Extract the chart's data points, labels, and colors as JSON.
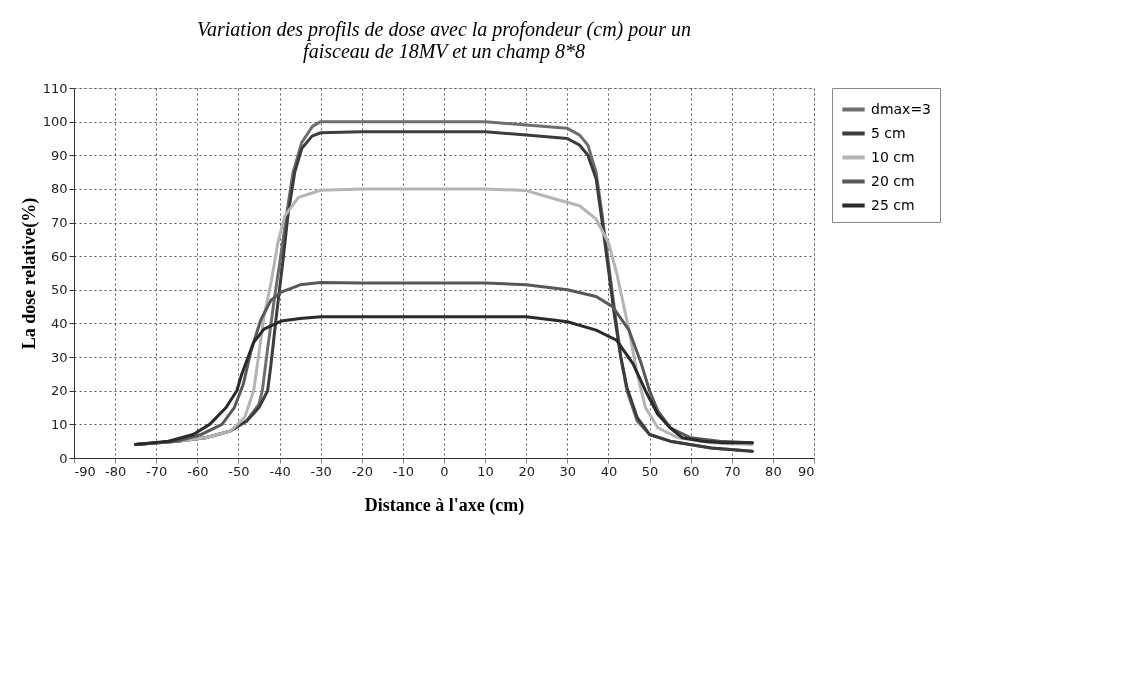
{
  "chart_data": {
    "type": "line",
    "title": [
      "Variation des profils de dose avec la profondeur (cm) pour un",
      "faisceau de 18MV et un champ 8*8"
    ],
    "xlabel": "Distance à l'axe (cm)",
    "ylabel": "La dose relative(%)",
    "xlim": [
      -90,
      90
    ],
    "xticks": [
      -90,
      -80,
      -70,
      -60,
      -50,
      -40,
      -30,
      -20,
      -10,
      0,
      10,
      20,
      30,
      40,
      50,
      60,
      70,
      80,
      90
    ],
    "ylim": [
      0,
      110
    ],
    "yticks": [
      0,
      10,
      20,
      30,
      40,
      50,
      60,
      70,
      80,
      90,
      100,
      110
    ],
    "grid": true,
    "legend": "right",
    "line_style": "solid",
    "marker": "none",
    "series": [
      {
        "name": "dmax=3",
        "color": "#6e6e6e",
        "x": [
          -75,
          -65,
          -58,
          -52,
          -48,
          -45,
          -44.2,
          -42.9,
          -41.3,
          -39.6,
          -37.9,
          -36.7,
          -34.6,
          -32,
          -30,
          -20,
          -10,
          0,
          10,
          20,
          30,
          33,
          35,
          37,
          38.5,
          40,
          41.5,
          43,
          44.5,
          47,
          50,
          55,
          65,
          75
        ],
        "values": [
          4,
          5,
          6,
          8,
          11,
          16,
          20,
          32.5,
          47,
          61,
          75.6,
          85,
          93.8,
          98.6,
          100,
          100,
          100,
          100,
          100,
          99,
          98,
          96,
          93,
          85,
          72,
          58,
          44,
          30,
          20,
          11,
          7,
          5,
          3,
          2
        ]
      },
      {
        "name": "5 cm",
        "color": "#3c3c3c",
        "x": [
          -75,
          -65,
          -58,
          -52,
          -48,
          -45,
          -42.9,
          -42.1,
          -40.8,
          -39.2,
          -37.9,
          -36.3,
          -34.6,
          -32.1,
          -30,
          -20,
          -10,
          0,
          10,
          20,
          30,
          33,
          35,
          37,
          38.5,
          40,
          41.5,
          43,
          44.5,
          47,
          50,
          55,
          65,
          75
        ],
        "values": [
          4,
          5,
          6,
          8,
          11,
          15,
          20,
          27.7,
          42,
          58.4,
          72.7,
          85,
          92,
          95.7,
          96.7,
          97,
          97,
          97,
          97,
          96,
          95,
          93,
          90,
          83,
          70,
          56,
          42,
          30,
          21,
          12,
          7,
          5,
          3,
          2
        ]
      },
      {
        "name": "10 cm",
        "color": "#b4b4b4",
        "x": [
          -75,
          -65,
          -58,
          -52,
          -48.5,
          -46.3,
          -45.4,
          -43.8,
          -42,
          -40.4,
          -38.8,
          -35.4,
          -30,
          -20,
          -10,
          0,
          10,
          20,
          27,
          33,
          37,
          40,
          42,
          45,
          47,
          49,
          52,
          57,
          65,
          75
        ],
        "values": [
          4,
          5,
          6,
          8,
          12,
          20,
          27.7,
          42,
          52.6,
          64,
          71.8,
          77.5,
          79.6,
          80,
          80,
          80,
          80,
          79.5,
          77,
          75,
          71,
          64,
          55,
          38,
          25,
          15,
          9,
          6,
          4.5,
          4
        ]
      },
      {
        "name": "20 cm",
        "color": "#585858",
        "x": [
          -75,
          -65,
          -59,
          -54,
          -51,
          -48.8,
          -47,
          -44.6,
          -42.1,
          -39.6,
          -35,
          -30,
          -20,
          -10,
          0,
          10,
          20,
          30,
          37,
          41,
          45,
          48,
          50,
          52,
          55,
          60,
          67,
          75
        ],
        "values": [
          4,
          5,
          7,
          10,
          15,
          22,
          31.6,
          41,
          46.9,
          49.3,
          51.5,
          52.2,
          52,
          52,
          52,
          52,
          51.5,
          50,
          48,
          45,
          38,
          28,
          20,
          14,
          9,
          6,
          5,
          4.5
        ]
      },
      {
        "name": "25 cm",
        "color": "#2a2a2a",
        "x": [
          -75,
          -67,
          -61,
          -57,
          -53,
          -50.4,
          -49.2,
          -46.3,
          -43.8,
          -39.6,
          -35,
          -30,
          -20,
          -10,
          0,
          10,
          20,
          30,
          37,
          42,
          46,
          49,
          52,
          55,
          58,
          63,
          68,
          75
        ],
        "values": [
          4,
          5,
          7,
          10,
          15,
          20,
          24.9,
          34.4,
          38.3,
          40.7,
          41.5,
          42,
          42,
          42,
          42,
          42,
          42,
          40.5,
          38,
          35,
          28,
          20,
          13,
          9,
          6,
          5,
          4.5,
          4.5
        ]
      }
    ]
  }
}
